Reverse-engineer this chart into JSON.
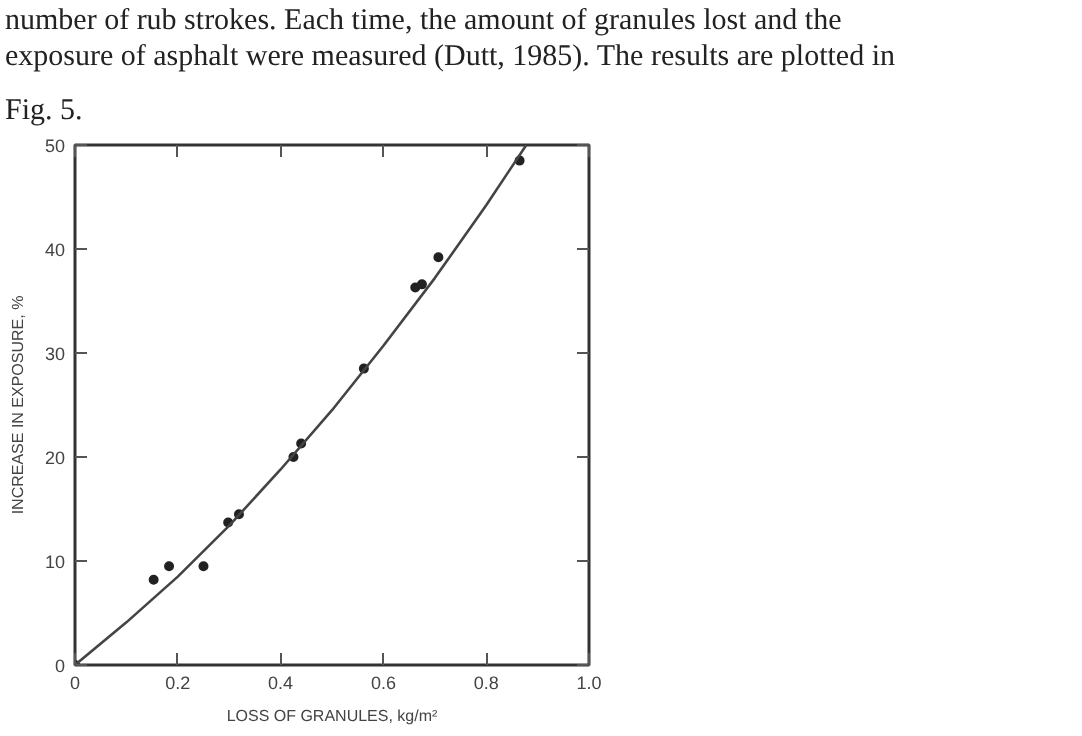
{
  "chart_data": {
    "type": "scatter",
    "xlabel": "LOSS OF GRANULES, kg/m²",
    "ylabel": "INCREASE IN EXPOSURE, %",
    "annotations": [
      "number of rub strokes. Each time, the amount of granules lost and the",
      "exposure of asphalt were measured (Dutt, 1985). The results are plotted in",
      "Fig. 5."
    ],
    "xlim": [
      0,
      1.0
    ],
    "ylim": [
      0,
      50
    ],
    "xticks": [
      0,
      0.2,
      0.4,
      0.6,
      0.8,
      {
        "value": 1.0,
        "label": "1.0"
      }
    ],
    "yticks": [
      0,
      10,
      20,
      30,
      40,
      50
    ],
    "grid": false,
    "series": [
      {
        "marker": "circle",
        "color": "#222222",
        "x": [
          0,
          0.153,
          0.183,
          0.25,
          0.298,
          0.319,
          0.425,
          0.44,
          0.562,
          0.662,
          0.675,
          0.707,
          0.865
        ],
        "values": [
          0,
          8.2,
          9.5,
          9.5,
          13.7,
          14.5,
          20.0,
          21.3,
          28.5,
          36.3,
          36.6,
          39.2,
          48.5
        ]
      },
      {
        "type": "line",
        "line_style": "solid",
        "marker": "none",
        "color": "#444444",
        "x": [
          0,
          0.1,
          0.2,
          0.3,
          0.4,
          0.5,
          0.6,
          0.7,
          0.8,
          0.878
        ],
        "values": [
          0,
          4.1,
          8.5,
          13.4,
          18.8,
          24.5,
          30.7,
          37.2,
          44.2,
          50
        ]
      }
    ]
  }
}
